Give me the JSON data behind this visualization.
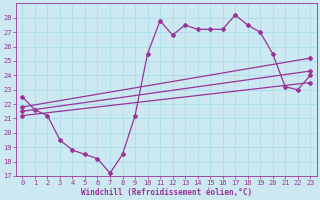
{
  "xlabel": "Windchill (Refroidissement éolien,°C)",
  "bg_color": "#cce8f0",
  "line_color": "#993399",
  "grid_color": "#aaddee",
  "xlim": [
    -0.5,
    23.5
  ],
  "ylim": [
    17,
    29
  ],
  "yticks": [
    17,
    18,
    19,
    20,
    21,
    22,
    23,
    24,
    25,
    26,
    27,
    28
  ],
  "xticks": [
    0,
    1,
    2,
    3,
    4,
    5,
    6,
    7,
    8,
    9,
    10,
    11,
    12,
    13,
    14,
    15,
    16,
    17,
    18,
    19,
    20,
    21,
    22,
    23
  ],
  "series_main": {
    "x": [
      0,
      1,
      2,
      3,
      4,
      5,
      6,
      7,
      8,
      9,
      10,
      11,
      12,
      13,
      14,
      15,
      16,
      17,
      18,
      19,
      20,
      21,
      22,
      23
    ],
    "y": [
      22.5,
      21.6,
      21.2,
      19.5,
      18.8,
      18.5,
      18.2,
      17.2,
      18.5,
      21.2,
      25.5,
      27.8,
      26.8,
      27.5,
      27.2,
      27.2,
      27.2,
      28.2,
      27.5,
      27.0,
      25.5,
      23.2,
      23.0,
      24.0
    ]
  },
  "series_upper": {
    "x": [
      0,
      23
    ],
    "y": [
      21.8,
      25.2
    ]
  },
  "series_mid1": {
    "x": [
      0,
      23
    ],
    "y": [
      21.5,
      24.3
    ]
  },
  "series_mid2": {
    "x": [
      0,
      23
    ],
    "y": [
      21.2,
      23.5
    ]
  },
  "xlabel_fontsize": 5.5,
  "tick_fontsize": 5,
  "linewidth": 0.9,
  "markersize": 2
}
